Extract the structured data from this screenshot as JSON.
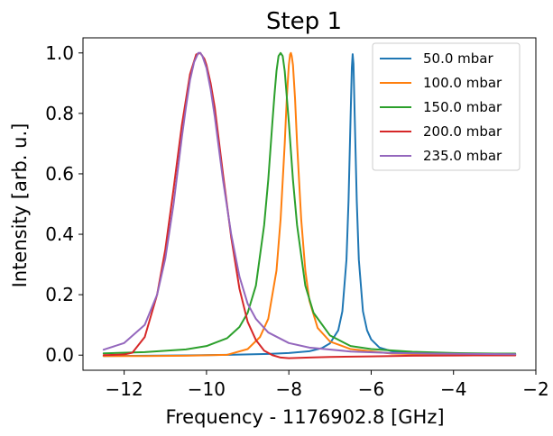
{
  "chart_data": {
    "type": "line",
    "title": "Step 1",
    "xlabel": "Frequency - 1176902.8 [GHz]",
    "ylabel": "Intensity [arb. u.]",
    "xlim": [
      -13.0,
      -2.0
    ],
    "ylim": [
      -0.05,
      1.05
    ],
    "xticks": [
      -12,
      -10,
      -8,
      -6,
      -4,
      -2
    ],
    "xtick_labels": [
      "−12",
      "−10",
      "−8",
      "−6",
      "−4",
      "−2"
    ],
    "yticks": [
      0.0,
      0.2,
      0.4,
      0.6,
      0.8,
      1.0
    ],
    "ytick_labels": [
      "0.0",
      "0.2",
      "0.4",
      "0.6",
      "0.8",
      "1.0"
    ],
    "grid": false,
    "legend_position": "top-right",
    "series": [
      {
        "name": "50.0 mbar",
        "color": "#1f77b4",
        "x": [
          -12.5,
          -11.5,
          -10.5,
          -9.5,
          -8.5,
          -8.0,
          -7.5,
          -7.2,
          -7.0,
          -6.8,
          -6.7,
          -6.6,
          -6.55,
          -6.5,
          -6.47,
          -6.45,
          -6.43,
          -6.4,
          -6.35,
          -6.3,
          -6.2,
          -6.1,
          -6.0,
          -5.8,
          -5.5,
          -5.0,
          -4.5,
          -3.5,
          -2.5
        ],
        "y": [
          -0.003,
          -0.002,
          -0.001,
          0.001,
          0.004,
          0.007,
          0.013,
          0.023,
          0.039,
          0.082,
          0.145,
          0.316,
          0.51,
          0.79,
          0.951,
          0.996,
          0.964,
          0.79,
          0.51,
          0.316,
          0.145,
          0.082,
          0.052,
          0.025,
          0.013,
          0.007,
          0.005,
          0.003,
          0.002
        ]
      },
      {
        "name": "100.0 mbar",
        "color": "#ff7f0e",
        "x": [
          -12.5,
          -11.5,
          -10.5,
          -9.5,
          -9.0,
          -8.7,
          -8.5,
          -8.3,
          -8.2,
          -8.1,
          -8.05,
          -8.0,
          -7.97,
          -7.95,
          -7.93,
          -7.9,
          -7.85,
          -7.8,
          -7.7,
          -7.6,
          -7.5,
          -7.3,
          -7.0,
          -6.5,
          -5.5,
          -4.5,
          -3.5,
          -2.5
        ],
        "y": [
          -0.003,
          -0.003,
          -0.002,
          0.001,
          0.02,
          0.06,
          0.12,
          0.28,
          0.45,
          0.7,
          0.85,
          0.96,
          0.995,
          1.0,
          0.99,
          0.96,
          0.85,
          0.7,
          0.45,
          0.28,
          0.18,
          0.09,
          0.045,
          0.02,
          0.005,
          0.002,
          0.001,
          0.0
        ]
      },
      {
        "name": "150.0 mbar",
        "color": "#2ca02c",
        "x": [
          -12.5,
          -11.5,
          -10.5,
          -10.0,
          -9.5,
          -9.2,
          -9.0,
          -8.8,
          -8.6,
          -8.5,
          -8.4,
          -8.35,
          -8.3,
          -8.25,
          -8.2,
          -8.15,
          -8.1,
          -8.0,
          -7.9,
          -7.8,
          -7.6,
          -7.4,
          -7.0,
          -6.5,
          -6.0,
          -5.0,
          -4.0,
          -3.0,
          -2.5
        ],
        "y": [
          0.006,
          0.01,
          0.019,
          0.03,
          0.056,
          0.093,
          0.14,
          0.23,
          0.43,
          0.58,
          0.77,
          0.86,
          0.94,
          0.99,
          1.0,
          0.99,
          0.94,
          0.77,
          0.58,
          0.43,
          0.23,
          0.14,
          0.065,
          0.03,
          0.02,
          0.011,
          0.007,
          0.005,
          0.005
        ]
      },
      {
        "name": "200.0 mbar",
        "color": "#d62728",
        "x": [
          -12.5,
          -12.0,
          -11.8,
          -11.5,
          -11.2,
          -11.0,
          -10.8,
          -10.6,
          -10.4,
          -10.25,
          -10.15,
          -10.05,
          -10.0,
          -9.9,
          -9.8,
          -9.6,
          -9.4,
          -9.2,
          -9.0,
          -8.8,
          -8.6,
          -8.4,
          -8.2,
          -8.0,
          -7.5,
          -7.0,
          -6.0,
          -5.0,
          -3.5,
          -2.5
        ],
        "y": [
          0.0,
          0.002,
          0.008,
          0.06,
          0.2,
          0.35,
          0.55,
          0.76,
          0.93,
          0.995,
          1.0,
          0.98,
          0.96,
          0.9,
          0.82,
          0.6,
          0.39,
          0.22,
          0.11,
          0.05,
          0.015,
          0.0,
          -0.008,
          -0.01,
          -0.008,
          -0.006,
          -0.004,
          -0.002,
          -0.001,
          -0.001
        ]
      },
      {
        "name": "235.0 mbar",
        "color": "#9467bd",
        "x": [
          -12.5,
          -12.0,
          -11.5,
          -11.2,
          -11.0,
          -10.8,
          -10.6,
          -10.5,
          -10.4,
          -10.3,
          -10.2,
          -10.15,
          -10.1,
          -10.0,
          -9.9,
          -9.8,
          -9.6,
          -9.4,
          -9.2,
          -9.0,
          -8.8,
          -8.5,
          -8.0,
          -7.5,
          -6.5,
          -5.5,
          -4.5,
          -3.5,
          -2.5
        ],
        "y": [
          0.018,
          0.04,
          0.1,
          0.2,
          0.32,
          0.5,
          0.72,
          0.82,
          0.91,
          0.97,
          1.0,
          1.0,
          0.99,
          0.95,
          0.88,
          0.79,
          0.58,
          0.4,
          0.26,
          0.17,
          0.12,
          0.075,
          0.04,
          0.025,
          0.012,
          0.007,
          0.005,
          0.004,
          0.003
        ]
      }
    ]
  }
}
